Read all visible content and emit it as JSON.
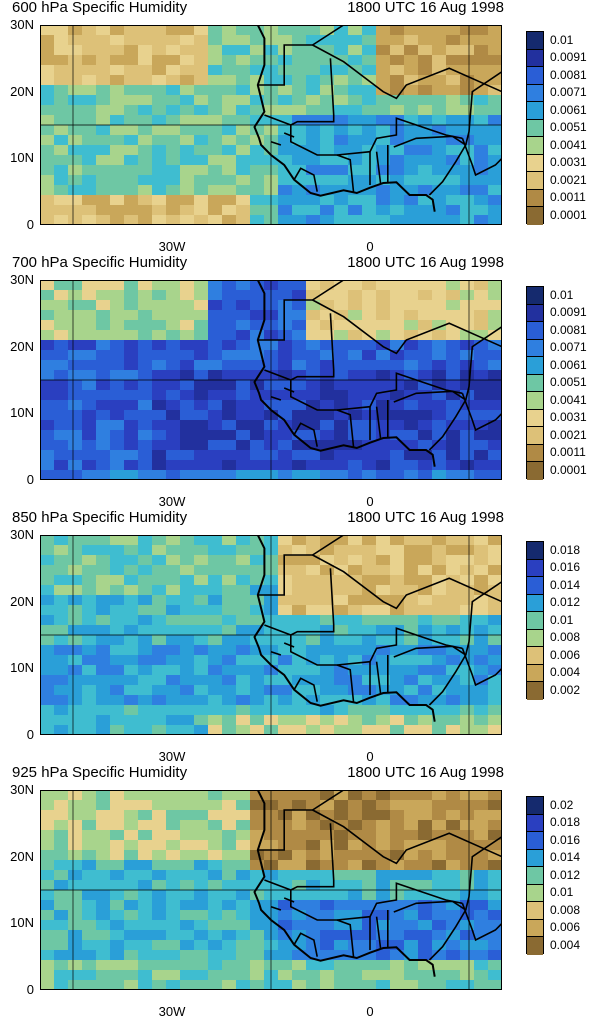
{
  "panels": [
    {
      "title": "600 hPa Specific Humidity",
      "time": "1800 UTC 16 Aug 1998",
      "colorbar": [
        "0.01",
        "0.0091",
        "0.0081",
        "0.0071",
        "0.0061",
        "0.0051",
        "0.0041",
        "0.0031",
        "0.0021",
        "0.0011",
        "0.0001"
      ]
    },
    {
      "title": "700 hPa Specific Humidity",
      "time": "1800 UTC 16 Aug 1998",
      "colorbar": [
        "0.01",
        "0.0091",
        "0.0081",
        "0.0071",
        "0.0061",
        "0.0051",
        "0.0041",
        "0.0031",
        "0.0021",
        "0.0011",
        "0.0001"
      ]
    },
    {
      "title": "850 hPa Specific Humidity",
      "time": "1800 UTC 16 Aug 1998",
      "colorbar": [
        "0.018",
        "0.016",
        "0.014",
        "0.012",
        "0.01",
        "0.008",
        "0.006",
        "0.004",
        "0.002"
      ]
    },
    {
      "title": "925 hPa Specific Humidity",
      "time": "1800 UTC 16 Aug 1998",
      "colorbar": [
        "0.02",
        "0.018",
        "0.016",
        "0.014",
        "0.012",
        "0.01",
        "0.008",
        "0.006",
        "0.004"
      ]
    }
  ],
  "axes": {
    "y_ticks": [
      "30N",
      "20N",
      "10N",
      "0"
    ],
    "x_ticks": [
      "30W",
      "0"
    ]
  },
  "colors": {
    "palette": [
      "#8a6a32",
      "#b08a45",
      "#c9a75a",
      "#ddc178",
      "#e8d28e",
      "#a8d48c",
      "#6ec7a4",
      "#3fbdd0",
      "#2a9fd8",
      "#2f7fe0",
      "#2a5ed6",
      "#2a3fc0",
      "#22309e",
      "#152a6e"
    ]
  }
}
